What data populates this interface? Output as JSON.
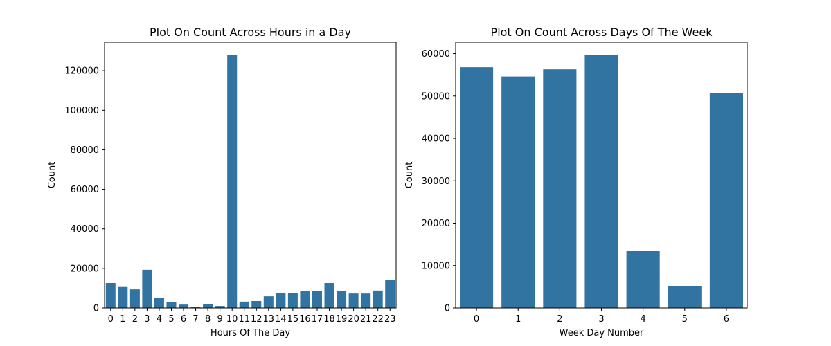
{
  "colors": {
    "bar": "#3274a1",
    "axis": "#000000",
    "background": "#ffffff"
  },
  "chart_data": [
    {
      "type": "bar",
      "title": "Plot On Count Across Hours in a Day",
      "xlabel": "Hours Of The Day",
      "ylabel": "Count",
      "categories": [
        "0",
        "1",
        "2",
        "3",
        "4",
        "5",
        "6",
        "7",
        "8",
        "9",
        "10",
        "11",
        "12",
        "13",
        "14",
        "15",
        "16",
        "17",
        "18",
        "19",
        "20",
        "21",
        "22",
        "23"
      ],
      "values": [
        12600,
        10600,
        9400,
        19300,
        5200,
        2900,
        1700,
        600,
        2000,
        1000,
        128000,
        3200,
        3500,
        5900,
        7400,
        7700,
        8600,
        8600,
        12600,
        8600,
        7300,
        7300,
        8800,
        14300
      ],
      "ylim": [
        0,
        134400
      ],
      "yticks": [
        0,
        20000,
        40000,
        60000,
        80000,
        100000,
        120000
      ],
      "grid": false,
      "legend": "none"
    },
    {
      "type": "bar",
      "title": "Plot On Count Across Days Of The Week",
      "xlabel": "Week Day Number",
      "ylabel": "Count",
      "categories": [
        "0",
        "1",
        "2",
        "3",
        "4",
        "5",
        "6"
      ],
      "values": [
        56800,
        54600,
        56300,
        59700,
        13500,
        5200,
        50700
      ],
      "ylim": [
        0,
        62700
      ],
      "yticks": [
        0,
        10000,
        20000,
        30000,
        40000,
        50000,
        60000
      ],
      "grid": false,
      "legend": "none"
    }
  ]
}
